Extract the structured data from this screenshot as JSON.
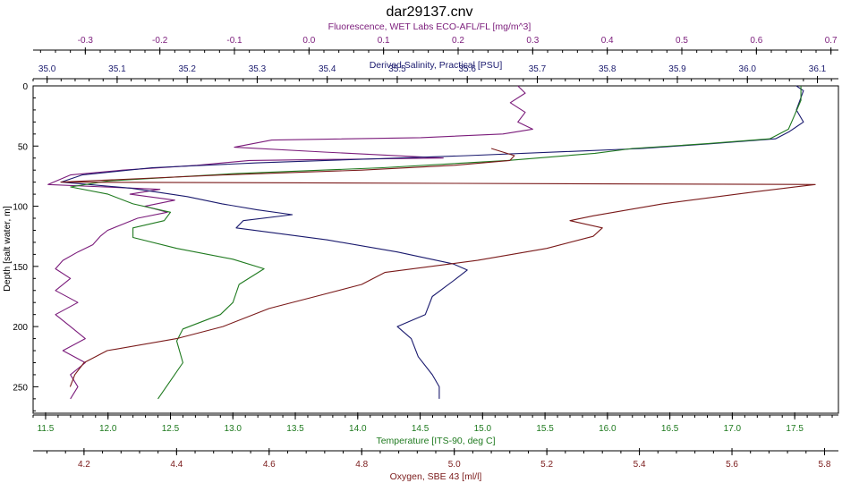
{
  "chart_data": {
    "type": "line",
    "title": "dar29137.cnv",
    "ylabel": "Depth [salt water, m]",
    "ylim": [
      0,
      272
    ],
    "yticks": [
      0,
      50,
      100,
      150,
      200,
      250
    ],
    "grid": false,
    "axes": {
      "fluorescence": {
        "label": "Fluorescence, WET Labs ECO-AFL/FL [mg/m^3]",
        "range": [
          -0.37,
          0.71
        ],
        "ticks": [
          -0.3,
          -0.2,
          -0.1,
          0.0,
          0.1,
          0.2,
          0.3,
          0.4,
          0.5,
          0.6,
          0.7
        ],
        "tick_labels": [
          "-0.3",
          "-0.2",
          "-0.1",
          "0.0",
          "0.1",
          "0.2",
          "0.3",
          "0.4",
          "0.5",
          "0.6",
          "0.7"
        ],
        "color": "#7b1c7b"
      },
      "salinity": {
        "label": "Derived Salinity, Practical [PSU]",
        "range": [
          34.98,
          36.13
        ],
        "ticks": [
          35.0,
          35.1,
          35.2,
          35.3,
          35.4,
          35.5,
          35.6,
          35.7,
          35.8,
          35.9,
          36.0,
          36.1
        ],
        "tick_labels": [
          "35.0",
          "35.1",
          "35.2",
          "35.3",
          "35.4",
          "35.5",
          "35.6",
          "35.7",
          "35.8",
          "35.9",
          "36.0",
          "36.1"
        ],
        "color": "#1a1a6e"
      },
      "temperature": {
        "label": "Temperature [ITS-90, deg C]",
        "range": [
          11.4,
          17.85
        ],
        "ticks": [
          11.5,
          12.0,
          12.5,
          13.0,
          13.5,
          14.0,
          14.5,
          15.0,
          15.5,
          16.0,
          16.5,
          17.0,
          17.5
        ],
        "tick_labels": [
          "11.5",
          "12.0",
          "12.5",
          "13.0",
          "13.5",
          "14.0",
          "14.5",
          "15.0",
          "15.5",
          "16.0",
          "16.5",
          "17.0",
          "17.5"
        ],
        "color": "#1f7a1f"
      },
      "oxygen": {
        "label": "Oxygen, SBE 43 [ml/l]",
        "range": [
          4.09,
          5.83
        ],
        "ticks": [
          4.2,
          4.4,
          4.6,
          4.8,
          5.0,
          5.2,
          5.4,
          5.6,
          5.8
        ],
        "tick_labels": [
          "4.2",
          "4.4",
          "4.6",
          "4.8",
          "5.0",
          "5.2",
          "5.4",
          "5.6",
          "5.8"
        ],
        "color": "#7a1a1a"
      }
    },
    "series": [
      {
        "key": "fluorescence",
        "axis": "fluorescence",
        "color": "#7b1c7b",
        "points": [
          [
            0.28,
            0
          ],
          [
            0.29,
            6
          ],
          [
            0.27,
            14
          ],
          [
            0.29,
            22
          ],
          [
            0.28,
            30
          ],
          [
            0.3,
            36
          ],
          [
            0.26,
            40
          ],
          [
            0.15,
            43
          ],
          [
            -0.05,
            45
          ],
          [
            -0.1,
            51
          ],
          [
            0.02,
            55
          ],
          [
            0.18,
            60
          ],
          [
            -0.08,
            62
          ],
          [
            -0.15,
            66
          ],
          [
            -0.25,
            70
          ],
          [
            -0.32,
            74
          ],
          [
            -0.35,
            82
          ],
          [
            -0.2,
            86
          ],
          [
            -0.24,
            90
          ],
          [
            -0.18,
            95
          ],
          [
            -0.22,
            100
          ],
          [
            -0.19,
            105
          ],
          [
            -0.23,
            110
          ],
          [
            -0.25,
            115
          ],
          [
            -0.27,
            120
          ],
          [
            -0.28,
            125
          ],
          [
            -0.29,
            132
          ],
          [
            -0.31,
            138
          ],
          [
            -0.33,
            145
          ],
          [
            -0.34,
            152
          ],
          [
            -0.32,
            160
          ],
          [
            -0.34,
            170
          ],
          [
            -0.31,
            180
          ],
          [
            -0.34,
            190
          ],
          [
            -0.32,
            200
          ],
          [
            -0.3,
            210
          ],
          [
            -0.33,
            220
          ],
          [
            -0.3,
            230
          ],
          [
            -0.32,
            240
          ],
          [
            -0.31,
            250
          ],
          [
            -0.32,
            260
          ]
        ]
      },
      {
        "key": "salinity",
        "axis": "salinity",
        "color": "#1a1a6e",
        "points": [
          [
            36.07,
            0
          ],
          [
            36.08,
            4
          ],
          [
            36.07,
            20
          ],
          [
            36.08,
            30
          ],
          [
            36.06,
            38
          ],
          [
            36.04,
            44
          ],
          [
            35.95,
            48
          ],
          [
            35.85,
            52
          ],
          [
            35.6,
            58
          ],
          [
            35.3,
            64
          ],
          [
            35.15,
            68
          ],
          [
            35.05,
            74
          ],
          [
            35.02,
            80
          ],
          [
            35.12,
            85
          ],
          [
            35.2,
            92
          ],
          [
            35.25,
            98
          ],
          [
            35.3,
            103
          ],
          [
            35.35,
            107
          ],
          [
            35.28,
            112
          ],
          [
            35.27,
            118
          ],
          [
            35.4,
            128
          ],
          [
            35.5,
            138
          ],
          [
            35.58,
            148
          ],
          [
            35.6,
            153
          ],
          [
            35.58,
            162
          ],
          [
            35.55,
            175
          ],
          [
            35.54,
            190
          ],
          [
            35.5,
            200
          ],
          [
            35.52,
            210
          ],
          [
            35.53,
            225
          ],
          [
            35.55,
            240
          ],
          [
            35.56,
            250
          ],
          [
            35.56,
            260
          ]
        ]
      },
      {
        "key": "temperature",
        "axis": "temperature",
        "color": "#1f7a1f",
        "points": [
          [
            17.55,
            0
          ],
          [
            17.55,
            12
          ],
          [
            17.5,
            24
          ],
          [
            17.45,
            36
          ],
          [
            17.3,
            44
          ],
          [
            16.8,
            48
          ],
          [
            16.2,
            52
          ],
          [
            15.9,
            56
          ],
          [
            15.2,
            62
          ],
          [
            14.2,
            68
          ],
          [
            13.0,
            73
          ],
          [
            12.0,
            79
          ],
          [
            11.7,
            84
          ],
          [
            12.0,
            90
          ],
          [
            12.2,
            98
          ],
          [
            12.5,
            105
          ],
          [
            12.45,
            112
          ],
          [
            12.2,
            118
          ],
          [
            12.2,
            126
          ],
          [
            12.55,
            135
          ],
          [
            13.0,
            144
          ],
          [
            13.25,
            152
          ],
          [
            13.05,
            165
          ],
          [
            13.0,
            180
          ],
          [
            12.9,
            190
          ],
          [
            12.6,
            202
          ],
          [
            12.55,
            212
          ],
          [
            12.6,
            230
          ],
          [
            12.5,
            245
          ],
          [
            12.4,
            260
          ]
        ]
      },
      {
        "key": "oxygen",
        "axis": "oxygen",
        "color": "#7a1a1a",
        "points": [
          [
            5.08,
            52
          ],
          [
            5.13,
            58
          ],
          [
            5.12,
            62
          ],
          [
            5.0,
            66
          ],
          [
            4.8,
            70
          ],
          [
            4.5,
            74
          ],
          [
            4.15,
            80
          ],
          [
            5.78,
            82
          ],
          [
            5.65,
            88
          ],
          [
            5.45,
            98
          ],
          [
            5.3,
            108
          ],
          [
            5.25,
            112
          ],
          [
            5.32,
            118
          ],
          [
            5.3,
            125
          ],
          [
            5.2,
            135
          ],
          [
            5.05,
            145
          ],
          [
            4.85,
            155
          ],
          [
            4.8,
            165
          ],
          [
            4.7,
            175
          ],
          [
            4.6,
            185
          ],
          [
            4.5,
            200
          ],
          [
            4.4,
            210
          ],
          [
            4.25,
            220
          ],
          [
            4.2,
            230
          ],
          [
            4.18,
            240
          ],
          [
            4.17,
            250
          ]
        ]
      }
    ]
  }
}
